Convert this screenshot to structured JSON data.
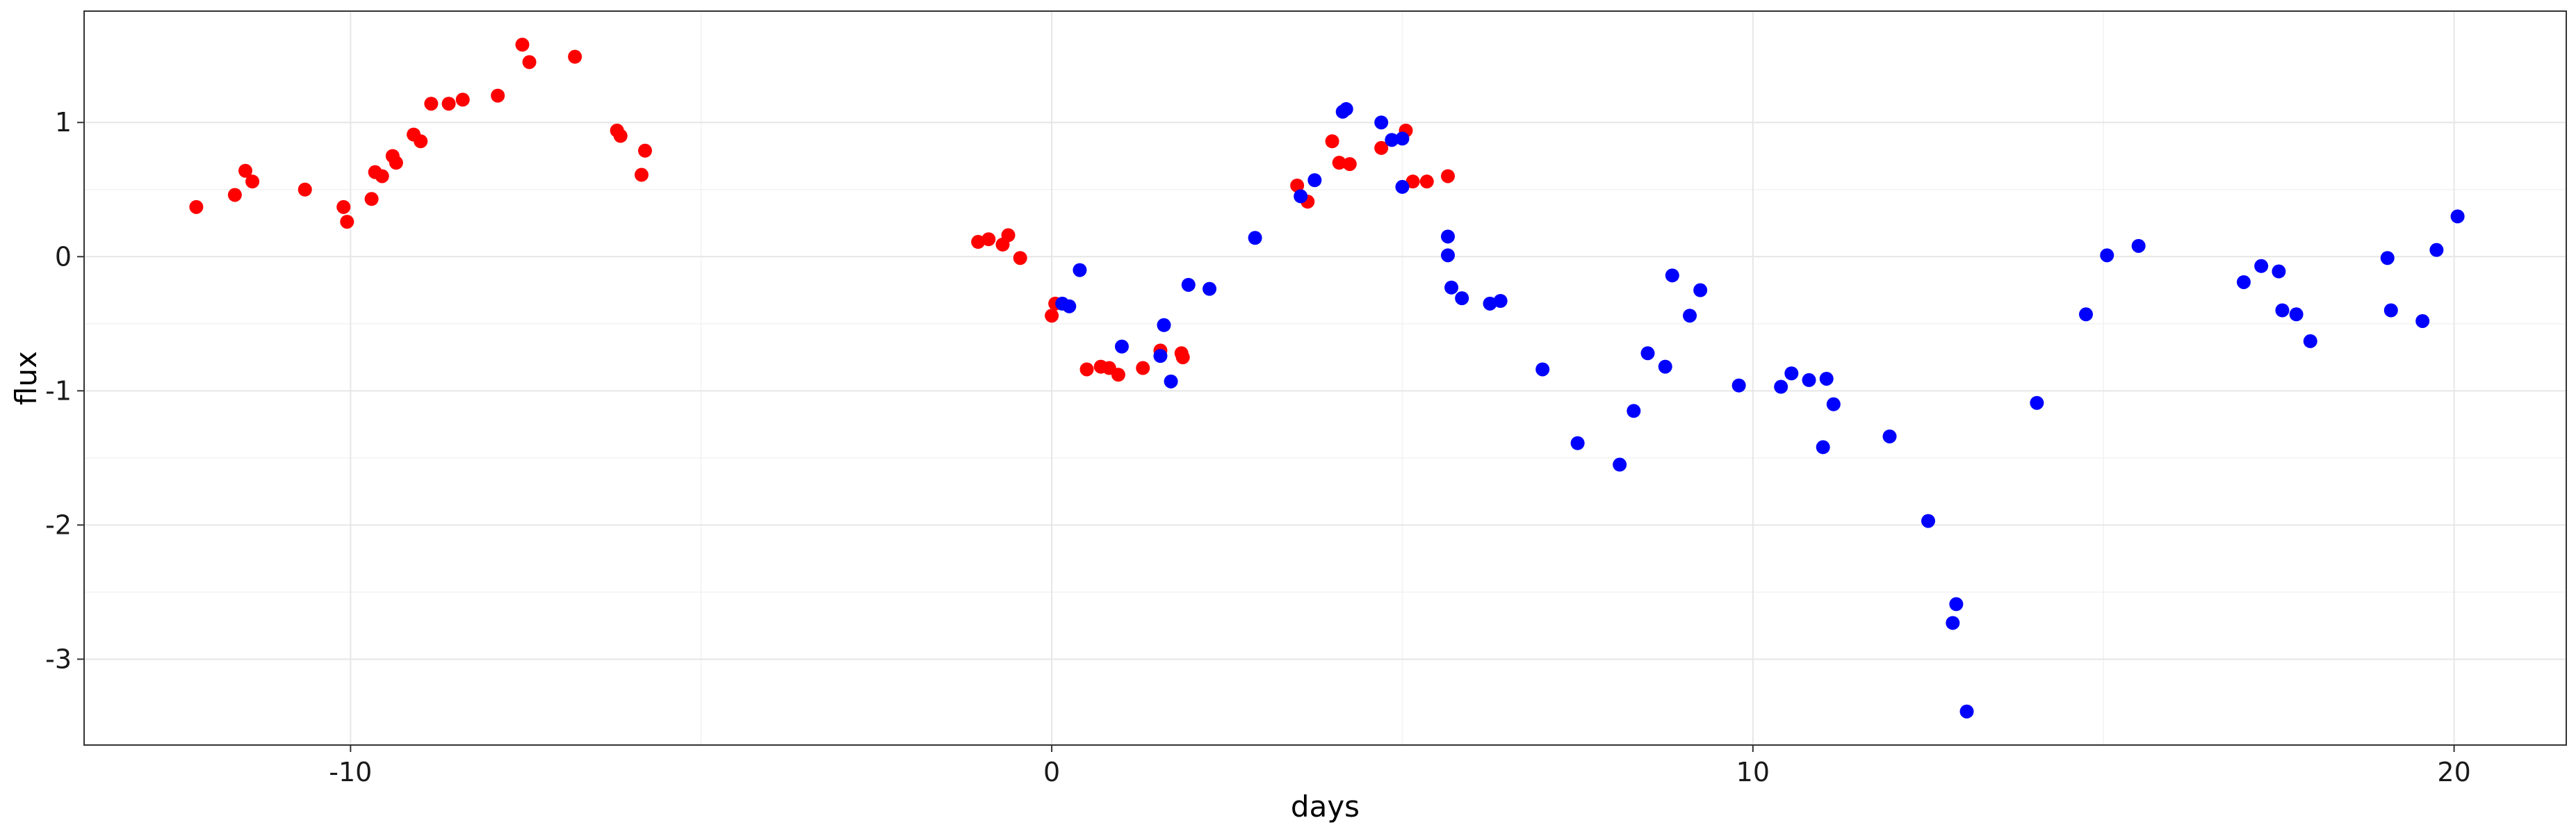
{
  "chart_data": {
    "type": "scatter",
    "xlabel": "days",
    "ylabel": "flux",
    "xlim": [
      -13.8,
      21.6
    ],
    "ylim": [
      -3.64,
      1.83
    ],
    "x_ticks": [
      -10,
      0,
      10,
      20
    ],
    "x_tick_labels": [
      "-10",
      "0",
      "10",
      "20"
    ],
    "y_ticks": [
      -3,
      -2,
      -1,
      0,
      1
    ],
    "y_tick_labels": [
      "-3",
      "-2",
      "-1",
      "0",
      "1"
    ],
    "grid": true,
    "legend": false,
    "series": [
      {
        "color": "#ff0000",
        "points": [
          [
            -12.2,
            0.37
          ],
          [
            -11.65,
            0.46
          ],
          [
            -11.5,
            0.64
          ],
          [
            -11.4,
            0.56
          ],
          [
            -10.65,
            0.5
          ],
          [
            -10.1,
            0.37
          ],
          [
            -10.05,
            0.26
          ],
          [
            -9.7,
            0.43
          ],
          [
            -9.65,
            0.63
          ],
          [
            -9.55,
            0.6
          ],
          [
            -9.4,
            0.75
          ],
          [
            -9.35,
            0.7
          ],
          [
            -9.1,
            0.91
          ],
          [
            -9.0,
            0.86
          ],
          [
            -8.85,
            1.14
          ],
          [
            -8.6,
            1.14
          ],
          [
            -8.4,
            1.17
          ],
          [
            -7.9,
            1.2
          ],
          [
            -7.55,
            1.58
          ],
          [
            -7.45,
            1.45
          ],
          [
            -6.8,
            1.49
          ],
          [
            -6.2,
            0.94
          ],
          [
            -6.15,
            0.9
          ],
          [
            -5.8,
            0.79
          ],
          [
            -5.85,
            0.61
          ],
          [
            -1.05,
            0.11
          ],
          [
            -0.9,
            0.13
          ],
          [
            -0.7,
            0.09
          ],
          [
            -0.62,
            0.16
          ],
          [
            -0.45,
            -0.01
          ],
          [
            0.0,
            -0.44
          ],
          [
            0.05,
            -0.35
          ],
          [
            0.5,
            -0.84
          ],
          [
            0.7,
            -0.82
          ],
          [
            0.82,
            -0.83
          ],
          [
            0.95,
            -0.88
          ],
          [
            1.3,
            -0.83
          ],
          [
            1.55,
            -0.7
          ],
          [
            1.85,
            -0.72
          ],
          [
            1.87,
            -0.75
          ],
          [
            3.5,
            0.53
          ],
          [
            3.65,
            0.41
          ],
          [
            4.0,
            0.86
          ],
          [
            4.1,
            0.7
          ],
          [
            4.25,
            0.69
          ],
          [
            4.7,
            0.81
          ],
          [
            5.05,
            0.94
          ],
          [
            5.15,
            0.56
          ],
          [
            5.35,
            0.56
          ],
          [
            5.65,
            0.6
          ]
        ]
      },
      {
        "color": "#0000ff",
        "points": [
          [
            0.15,
            -0.35
          ],
          [
            0.25,
            -0.37
          ],
          [
            0.4,
            -0.1
          ],
          [
            1.0,
            -0.67
          ],
          [
            1.55,
            -0.74
          ],
          [
            1.6,
            -0.51
          ],
          [
            1.7,
            -0.93
          ],
          [
            1.95,
            -0.21
          ],
          [
            2.25,
            -0.24
          ],
          [
            2.9,
            0.14
          ],
          [
            3.55,
            0.45
          ],
          [
            3.75,
            0.57
          ],
          [
            4.15,
            1.08
          ],
          [
            4.2,
            1.1
          ],
          [
            4.7,
            1.0
          ],
          [
            4.85,
            0.87
          ],
          [
            5.0,
            0.88
          ],
          [
            5.0,
            0.52
          ],
          [
            5.65,
            0.15
          ],
          [
            5.65,
            0.01
          ],
          [
            5.7,
            -0.23
          ],
          [
            5.85,
            -0.31
          ],
          [
            6.25,
            -0.35
          ],
          [
            6.4,
            -0.33
          ],
          [
            7.0,
            -0.84
          ],
          [
            7.5,
            -1.39
          ],
          [
            8.1,
            -1.55
          ],
          [
            8.3,
            -1.15
          ],
          [
            8.5,
            -0.72
          ],
          [
            8.75,
            -0.82
          ],
          [
            8.85,
            -0.14
          ],
          [
            9.1,
            -0.44
          ],
          [
            9.25,
            -0.25
          ],
          [
            9.8,
            -0.96
          ],
          [
            10.4,
            -0.97
          ],
          [
            10.55,
            -0.87
          ],
          [
            10.8,
            -0.92
          ],
          [
            11.0,
            -1.42
          ],
          [
            11.05,
            -0.91
          ],
          [
            11.15,
            -1.1
          ],
          [
            11.95,
            -1.34
          ],
          [
            12.5,
            -1.97
          ],
          [
            12.85,
            -2.73
          ],
          [
            12.9,
            -2.59
          ],
          [
            13.05,
            -3.39
          ],
          [
            14.05,
            -1.09
          ],
          [
            14.75,
            -0.43
          ],
          [
            15.05,
            0.01
          ],
          [
            15.5,
            0.08
          ],
          [
            17.0,
            -0.19
          ],
          [
            17.25,
            -0.07
          ],
          [
            17.5,
            -0.11
          ],
          [
            17.55,
            -0.4
          ],
          [
            17.75,
            -0.43
          ],
          [
            17.95,
            -0.63
          ],
          [
            19.05,
            -0.01
          ],
          [
            19.1,
            -0.4
          ],
          [
            19.55,
            -0.48
          ],
          [
            19.75,
            0.05
          ],
          [
            20.05,
            0.3
          ]
        ]
      }
    ]
  }
}
